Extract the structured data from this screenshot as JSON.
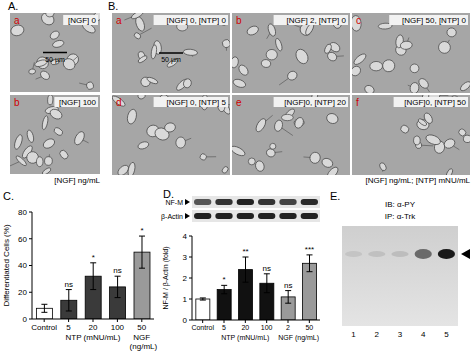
{
  "figure": {
    "A": {
      "label": "A.",
      "images": [
        {
          "letter": "a",
          "caption": "[NGF] 0"
        },
        {
          "letter": "b",
          "caption": "[NGF] 100"
        }
      ],
      "scale_bar": "50 µm",
      "footer": "[NGF] ng/mL"
    },
    "B": {
      "label": "B.",
      "images": [
        {
          "letter": "a",
          "caption": "[NGF] 0, [NTP] 0"
        },
        {
          "letter": "b",
          "caption": "[NGF] 2, [NTP] 0"
        },
        {
          "letter": "c",
          "caption": "[NGF] 50, [NTP] 0"
        },
        {
          "letter": "d",
          "caption": "[NGF] 0, [NTP] 5"
        },
        {
          "letter": "e",
          "caption": "[NGF]0, [NTP] 20"
        },
        {
          "letter": "f",
          "caption": "[NGF]0, [NTP] 50"
        }
      ],
      "scale_bar": "50 µm",
      "footer": "[NGF] ng/mL; [NTP] mNU/mL"
    },
    "E": {
      "label": "E.",
      "ib": "IB: α-PY",
      "ip": "IP: α-Trk",
      "lanes": [
        "1",
        "2",
        "3",
        "4",
        "5"
      ]
    }
  },
  "chart_data": [
    {
      "panel": "C.",
      "type": "bar",
      "ylabel": "Differentiated Cells (%)",
      "categories": [
        "Control",
        "5",
        "20",
        "100",
        "50"
      ],
      "category_groups": [
        null,
        "NTP (mNU/mL)",
        "NTP (mNU/mL)",
        "NTP (mNU/mL)",
        "NGF (ng/mL)"
      ],
      "values": [
        8,
        14,
        32,
        24,
        50
      ],
      "errors": [
        3,
        8,
        10,
        8,
        12
      ],
      "significance": [
        null,
        "ns",
        "*",
        "ns",
        "*"
      ],
      "colors": [
        "#ffffff",
        "#3a3a3a",
        "#3a3a3a",
        "#3a3a3a",
        "#9a9a9a"
      ],
      "ylim": [
        0,
        80
      ],
      "yticks": [
        0,
        20,
        40,
        60,
        80
      ]
    },
    {
      "panel": "D.",
      "type": "bar",
      "ylabel": "NF-M / β-Actin (fold)",
      "blot_labels": [
        "NF-M",
        "β-Actin"
      ],
      "categories": [
        "Control",
        "5",
        "20",
        "100",
        "2",
        "50"
      ],
      "category_groups": [
        null,
        "NTP (mNU/mL)",
        "NTP (mNU/mL)",
        "NTP (mNU/mL)",
        "NGF (ng/mL)",
        "NGF (ng/mL)"
      ],
      "values": [
        1.0,
        1.45,
        2.4,
        1.75,
        1.1,
        2.7
      ],
      "errors": [
        0.05,
        0.2,
        0.6,
        0.45,
        0.3,
        0.4
      ],
      "significance": [
        null,
        "*",
        "**",
        "ns",
        "ns",
        "***"
      ],
      "colors": [
        "#ffffff",
        "#111111",
        "#111111",
        "#111111",
        "#9a9a9a",
        "#9a9a9a"
      ],
      "ylim": [
        0,
        4
      ],
      "yticks": [
        0,
        1,
        2,
        3,
        4
      ]
    }
  ]
}
